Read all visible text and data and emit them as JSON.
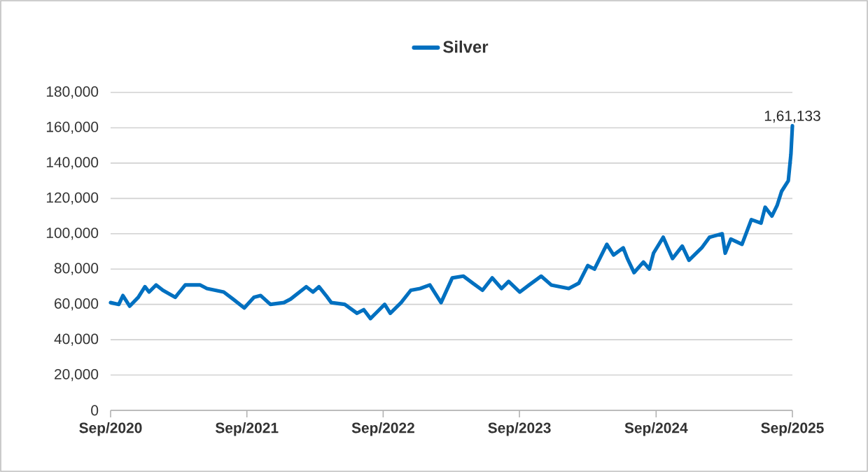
{
  "chart_data": {
    "type": "line",
    "legend": "top",
    "grid": "y",
    "marker": "none",
    "line_style": "solid",
    "x": [
      "2020-09-01",
      "2020-09-23",
      "2020-10-04",
      "2020-10-22",
      "2020-11-14",
      "2020-12-02",
      "2020-12-13",
      "2021-01-01",
      "2021-01-19",
      "2021-02-21",
      "2021-03-20",
      "2021-04-29",
      "2021-05-17",
      "2021-07-01",
      "2021-07-26",
      "2021-08-25",
      "2021-09-20",
      "2021-10-08",
      "2021-11-03",
      "2021-12-09",
      "2021-12-27",
      "2022-02-07",
      "2022-02-25",
      "2022-03-13",
      "2022-04-01",
      "2022-04-15",
      "2022-05-21",
      "2022-06-23",
      "2022-07-11",
      "2022-07-29",
      "2022-08-17",
      "2022-09-05",
      "2022-09-20",
      "2022-10-19",
      "2022-11-14",
      "2022-12-09",
      "2023-01-04",
      "2023-02-03",
      "2023-03-05",
      "2023-04-04",
      "2023-04-29",
      "2023-05-25",
      "2023-06-20",
      "2023-07-15",
      "2023-08-03",
      "2023-09-02",
      "2023-09-27",
      "2023-10-29",
      "2023-11-25",
      "2024-01-11",
      "2024-02-07",
      "2024-03-02",
      "2024-03-20",
      "2024-04-22",
      "2024-05-10",
      "2024-06-05",
      "2024-06-16",
      "2024-07-04",
      "2024-07-29",
      "2024-08-14",
      "2024-08-25",
      "2024-09-20",
      "2024-10-15",
      "2024-11-10",
      "2024-11-28",
      "2025-01-01",
      "2025-01-22",
      "2025-02-25",
      "2025-03-05",
      "2025-03-20",
      "2025-04-19",
      "2025-05-14",
      "2025-06-09",
      "2025-06-20",
      "2025-07-08",
      "2025-07-22",
      "2025-08-03",
      "2025-08-21",
      "2025-08-28",
      "2025-09-01"
    ],
    "series": [
      {
        "name": "Silver",
        "color": "#0070c0",
        "values": [
          61000,
          60000,
          65000,
          59000,
          64000,
          70000,
          67000,
          71000,
          68000,
          64000,
          71000,
          71000,
          69000,
          67000,
          63000,
          58000,
          64000,
          65000,
          60000,
          61000,
          63000,
          70000,
          67000,
          70000,
          65000,
          61000,
          60000,
          55000,
          57000,
          52000,
          56000,
          60000,
          55000,
          61000,
          68000,
          69000,
          71000,
          61000,
          75000,
          76000,
          72000,
          68000,
          75000,
          69000,
          73000,
          67000,
          71000,
          76000,
          71000,
          69000,
          72000,
          82000,
          80000,
          94000,
          88000,
          92000,
          86000,
          78000,
          84000,
          80000,
          89000,
          98000,
          86000,
          93000,
          85000,
          92000,
          98000,
          100000,
          89000,
          97000,
          94000,
          108000,
          106000,
          115000,
          110000,
          116000,
          124000,
          130000,
          145000,
          161133
        ]
      }
    ],
    "xlim": [
      "2020-09-01",
      "2025-09-01"
    ],
    "xticks": [
      {
        "value": "2020-09-01",
        "label": "Sep/2020"
      },
      {
        "value": "2021-09-01",
        "label": "Sep/2021"
      },
      {
        "value": "2022-09-01",
        "label": "Sep/2022"
      },
      {
        "value": "2023-09-01",
        "label": "Sep/2023"
      },
      {
        "value": "2024-09-01",
        "label": "Sep/2024"
      },
      {
        "value": "2025-09-01",
        "label": "Sep/2025"
      }
    ],
    "ylim": [
      0,
      180000
    ],
    "yticks": [
      {
        "value": 0,
        "label": "0"
      },
      {
        "value": 20000,
        "label": "20,000"
      },
      {
        "value": 40000,
        "label": "40,000"
      },
      {
        "value": 60000,
        "label": "60,000"
      },
      {
        "value": 80000,
        "label": "80,000"
      },
      {
        "value": 100000,
        "label": "100,000"
      },
      {
        "value": 120000,
        "label": "120,000"
      },
      {
        "value": 140000,
        "label": "140,000"
      },
      {
        "value": 160000,
        "label": "160,000"
      },
      {
        "value": 180000,
        "label": "180,000"
      }
    ],
    "annotations": [
      {
        "text": "1,61,133",
        "x": "2025-09-01",
        "y": 161133
      }
    ]
  }
}
